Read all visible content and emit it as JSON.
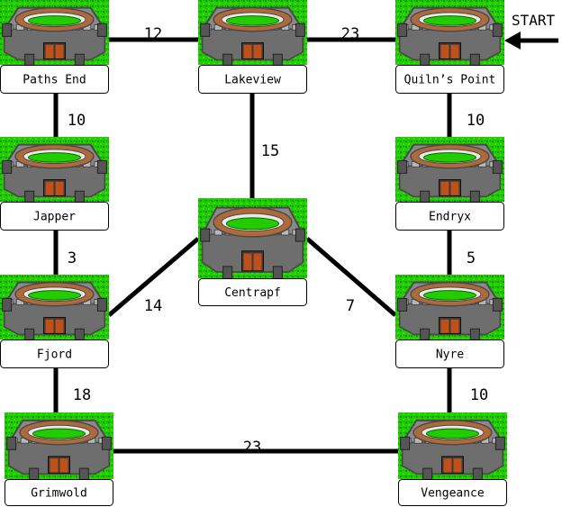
{
  "start_label": "START",
  "colors": {
    "grass": "#22cc00",
    "grass_dark": "#119900",
    "stone": "#8a8a8a",
    "stone_dark": "#4a4a4a",
    "roof": "#b06a3a",
    "door": "#c0501a",
    "edge": "#000000"
  },
  "nodes": [
    {
      "id": "paths-end",
      "label": "Paths End"
    },
    {
      "id": "lakeview",
      "label": "Lakeview"
    },
    {
      "id": "quilns-point",
      "label": "Quiln’s Point"
    },
    {
      "id": "japper",
      "label": "Japper"
    },
    {
      "id": "endryx",
      "label": "Endryx"
    },
    {
      "id": "centrapf",
      "label": "Centrapf"
    },
    {
      "id": "fjord",
      "label": "Fjord"
    },
    {
      "id": "nyre",
      "label": "Nyre"
    },
    {
      "id": "grimwold",
      "label": "Grimwold"
    },
    {
      "id": "vengeance",
      "label": "Vengeance"
    }
  ],
  "edges": [
    {
      "from": "paths-end",
      "to": "lakeview",
      "weight": "12"
    },
    {
      "from": "lakeview",
      "to": "quilns-point",
      "weight": "23"
    },
    {
      "from": "paths-end",
      "to": "japper",
      "weight": "10"
    },
    {
      "from": "lakeview",
      "to": "centrapf",
      "weight": "15"
    },
    {
      "from": "quilns-point",
      "to": "endryx",
      "weight": "10"
    },
    {
      "from": "japper",
      "to": "fjord",
      "weight": "3"
    },
    {
      "from": "endryx",
      "to": "nyre",
      "weight": "5"
    },
    {
      "from": "fjord",
      "to": "centrapf",
      "weight": "14"
    },
    {
      "from": "centrapf",
      "to": "nyre",
      "weight": "7"
    },
    {
      "from": "fjord",
      "to": "grimwold",
      "weight": "18"
    },
    {
      "from": "nyre",
      "to": "vengeance",
      "weight": "10"
    },
    {
      "from": "grimwold",
      "to": "vengeance",
      "weight": "23"
    }
  ]
}
